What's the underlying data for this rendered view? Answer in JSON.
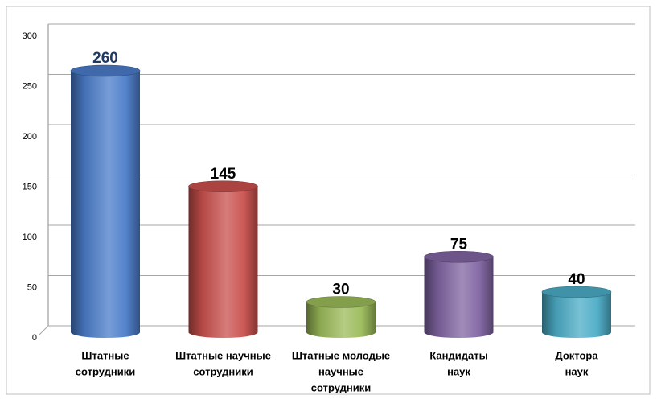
{
  "chart_data": {
    "type": "bar",
    "categories": [
      [
        "Штатные",
        "сотрудники"
      ],
      [
        "Штатные научные",
        "сотрудники"
      ],
      [
        "Штатные молодые",
        "научные",
        "сотрудники"
      ],
      [
        "Кандидаты",
        "наук"
      ],
      [
        "Доктора",
        "наук"
      ]
    ],
    "values": [
      260,
      145,
      30,
      75,
      40
    ],
    "colors": [
      "#4a7cc9",
      "#c9504d",
      "#9bbb59",
      "#8064a2",
      "#4bacc6"
    ],
    "value_label_colors": [
      "#1f3864",
      "#000000",
      "#000000",
      "#000000",
      "#000000"
    ],
    "ylim": [
      0,
      300
    ],
    "yticks": [
      0,
      50,
      100,
      150,
      200,
      250,
      300
    ],
    "grid": true
  }
}
